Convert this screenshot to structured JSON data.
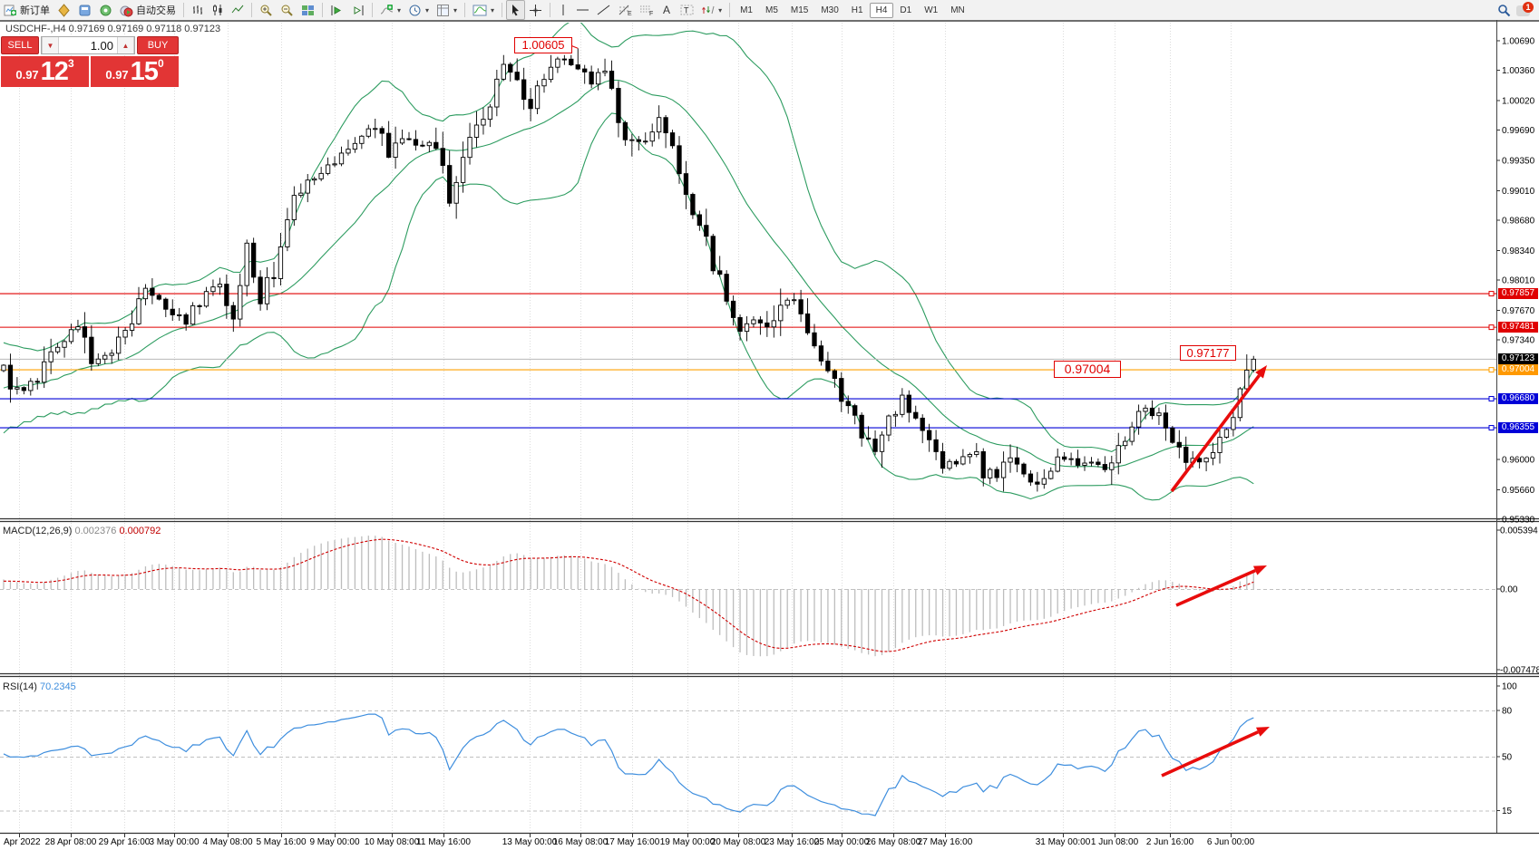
{
  "toolbar": {
    "new_order_label": "新订单",
    "auto_trading_label": "自动交易",
    "timeframes": [
      "M1",
      "M5",
      "M15",
      "M30",
      "H1",
      "H4",
      "D1",
      "W1",
      "MN"
    ],
    "active_timeframe": "H4",
    "notification_badge": "1"
  },
  "symbol_header": "USDCHF-,H4  0.97169 0.97169 0.97118 0.97123",
  "trade_panel": {
    "sell_label": "SELL",
    "buy_label": "BUY",
    "volume": "1.00",
    "sell_price": {
      "base": "0.97",
      "big": "12",
      "sup": "3"
    },
    "buy_price": {
      "base": "0.97",
      "big": "15",
      "sup": "0"
    }
  },
  "annotations": {
    "peak_price": "1.00605",
    "support_level": "0.97004",
    "recent_high": "0.97177"
  },
  "price_axis": {
    "ticks": [
      "1.00690",
      "1.00360",
      "1.00020",
      "0.99690",
      "0.99350",
      "0.99010",
      "0.98680",
      "0.98340",
      "0.98010",
      "0.97670",
      "0.97340",
      "0.96000",
      "0.95660",
      "0.95330"
    ],
    "badges": [
      {
        "text": "0.97857",
        "color": "#e00000"
      },
      {
        "text": "0.97481",
        "color": "#e00000"
      },
      {
        "text": "0.97123",
        "color": "#000000"
      },
      {
        "text": "0.97004",
        "color": "#ff9900"
      },
      {
        "text": "0.96680",
        "color": "#0000d8"
      },
      {
        "text": "0.96355",
        "color": "#0000d8"
      }
    ]
  },
  "time_axis": [
    "Apr 2022",
    "28 Apr 08:00",
    "29 Apr 16:00",
    "3 May 00:00",
    "4 May 08:00",
    "5 May 16:00",
    "9 May 00:00",
    "10 May 08:00",
    "11 May 16:00",
    "13 May 00:00",
    "16 May 08:00",
    "17 May 16:00",
    "19 May 00:00",
    "20 May 08:00",
    "23 May 16:00",
    "25 May 00:00",
    "26 May 08:00",
    "27 May 16:00",
    "31 May 00:00",
    "1 Jun 08:00",
    "2 Jun 16:00",
    "6 Jun 00:00"
  ],
  "indicator_labels": {
    "macd": {
      "name": "MACD(12,26,9)",
      "main_value": "0.002376",
      "signal_value": "0.000792",
      "axis_max": "0.005394",
      "axis_zero": "0.00",
      "axis_min": "-0.007478"
    },
    "rsi": {
      "name": "RSI(14)",
      "value": "70.2345",
      "axis": [
        "100",
        "80",
        "50",
        "15"
      ]
    }
  },
  "chart_data": {
    "type": "candlestick",
    "symbol": "USDCHF",
    "period": "H4",
    "bars_total": 186,
    "current_price": 0.97123,
    "peak_high": 1.00605,
    "recent_high": 0.97177,
    "levels": [
      {
        "price": 0.97857,
        "color": "#e00000"
      },
      {
        "price": 0.97481,
        "color": "#e00000"
      },
      {
        "price": 0.97004,
        "color": "#ffa000"
      },
      {
        "price": 0.9668,
        "color": "#0000d8"
      },
      {
        "price": 0.96355,
        "color": "#0000d8"
      }
    ],
    "close_anchors": [
      [
        0,
        0.97
      ],
      [
        2,
        0.9672
      ],
      [
        5,
        0.9692
      ],
      [
        8,
        0.973
      ],
      [
        11,
        0.9752
      ],
      [
        13,
        0.9705
      ],
      [
        16,
        0.9718
      ],
      [
        19,
        0.9762
      ],
      [
        21,
        0.979
      ],
      [
        24,
        0.9772
      ],
      [
        27,
        0.9752
      ],
      [
        30,
        0.9788
      ],
      [
        32,
        0.9802
      ],
      [
        34,
        0.9748
      ],
      [
        36,
        0.9846
      ],
      [
        38,
        0.9782
      ],
      [
        40,
        0.9812
      ],
      [
        43,
        0.9895
      ],
      [
        46,
        0.9921
      ],
      [
        49,
        0.9932
      ],
      [
        52,
        0.9951
      ],
      [
        55,
        0.9972
      ],
      [
        57,
        0.9942
      ],
      [
        59,
        0.9968
      ],
      [
        61,
        0.9948
      ],
      [
        63,
        0.9958
      ],
      [
        65,
        0.992
      ],
      [
        66,
        0.9896
      ],
      [
        68,
        0.994
      ],
      [
        70,
        0.9968
      ],
      [
        72,
        1.0
      ],
      [
        74,
        1.0042
      ],
      [
        76,
        1.0022
      ],
      [
        78,
        0.9996
      ],
      [
        80,
        1.003
      ],
      [
        82,
        1.0048
      ],
      [
        85,
        1.004
      ],
      [
        87,
        1.0018
      ],
      [
        89,
        1.0035
      ],
      [
        91,
        0.9988
      ],
      [
        93,
        0.995
      ],
      [
        95,
        0.9962
      ],
      [
        97,
        0.998
      ],
      [
        99,
        0.9944
      ],
      [
        101,
        0.99
      ],
      [
        103,
        0.9868
      ],
      [
        105,
        0.9818
      ],
      [
        107,
        0.9775
      ],
      [
        109,
        0.9748
      ],
      [
        111,
        0.976
      ],
      [
        113,
        0.9744
      ],
      [
        115,
        0.9772
      ],
      [
        117,
        0.9782
      ],
      [
        119,
        0.9742
      ],
      [
        121,
        0.9712
      ],
      [
        123,
        0.9688
      ],
      [
        125,
        0.9658
      ],
      [
        127,
        0.9632
      ],
      [
        129,
        0.9612
      ],
      [
        131,
        0.9642
      ],
      [
        133,
        0.9664
      ],
      [
        135,
        0.9638
      ],
      [
        137,
        0.9618
      ],
      [
        139,
        0.9598
      ],
      [
        141,
        0.9594
      ],
      [
        143,
        0.9612
      ],
      [
        145,
        0.9588
      ],
      [
        147,
        0.9582
      ],
      [
        149,
        0.9602
      ],
      [
        151,
        0.9588
      ],
      [
        153,
        0.9574
      ],
      [
        155,
        0.9592
      ],
      [
        157,
        0.9604
      ],
      [
        159,
        0.9594
      ],
      [
        161,
        0.96
      ],
      [
        163,
        0.959
      ],
      [
        165,
        0.9614
      ],
      [
        167,
        0.9646
      ],
      [
        169,
        0.9662
      ],
      [
        171,
        0.9648
      ],
      [
        173,
        0.9626
      ],
      [
        175,
        0.9602
      ],
      [
        177,
        0.9594
      ],
      [
        179,
        0.9608
      ],
      [
        181,
        0.9628
      ],
      [
        182,
        0.965
      ],
      [
        183,
        0.9684
      ],
      [
        184,
        0.9706
      ],
      [
        185,
        0.97123
      ]
    ],
    "bollinger": {
      "period": 20,
      "deviations": 2
    },
    "macd": {
      "fast": 12,
      "slow": 26,
      "signal": 9
    },
    "rsi": {
      "period": 14
    }
  }
}
